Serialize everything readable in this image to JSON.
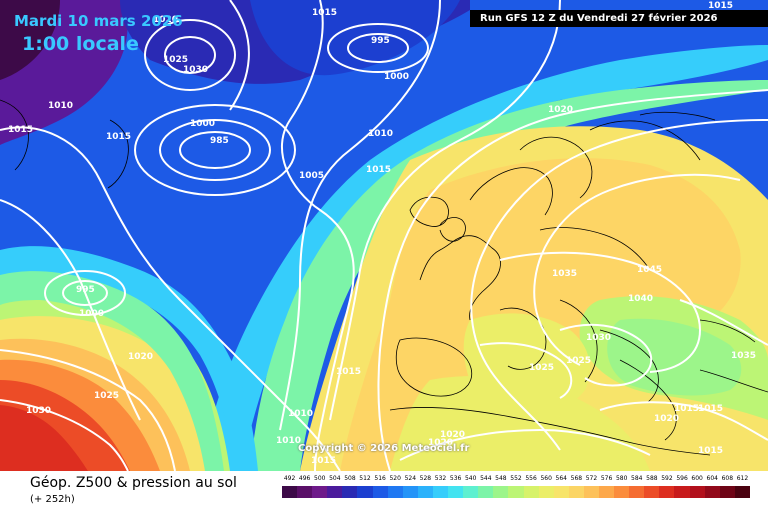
{
  "header": {
    "date": "Mardi 10 mars 2026",
    "time": "1:00 locale",
    "run": "Run GFS 12 Z du Vendredi 27 février 2026"
  },
  "copyright": "Copyright © 2026 Meteociel.fr",
  "footer": {
    "title": "Géop. Z500 & pression au sol",
    "subtitle": "(+ 252h)"
  },
  "colorbar": {
    "labels": [
      "492",
      "496",
      "500",
      "504",
      "508",
      "512",
      "516",
      "520",
      "524",
      "528",
      "532",
      "536",
      "540",
      "544",
      "548",
      "552",
      "556",
      "560",
      "564",
      "568",
      "572",
      "576",
      "580",
      "584",
      "588",
      "592",
      "596",
      "600",
      "604",
      "608",
      "612"
    ],
    "colors": [
      "#3d0a48",
      "#5a0f68",
      "#6e1a8a",
      "#4b1b9c",
      "#2a2ab4",
      "#1c3fd0",
      "#1d5ae6",
      "#1f78f2",
      "#2494f8",
      "#2bb2fb",
      "#36cdfb",
      "#43e3f0",
      "#5ef0d0",
      "#7cf4a8",
      "#9cf58a",
      "#bcf575",
      "#d7f26a",
      "#ebee68",
      "#f7e46a",
      "#fbd565",
      "#fdc15a",
      "#fda84a",
      "#fb8c3c",
      "#f56c31",
      "#ec4c27",
      "#dd2e20",
      "#c81b1c",
      "#b2101c",
      "#92091a",
      "#6e0416",
      "#4a0210"
    ]
  },
  "isobar_labels": [
    "1015",
    "1020",
    "1025",
    "1030",
    "1010",
    "1015",
    "1000",
    "985",
    "995",
    "1000",
    "1015",
    "1010",
    "1005",
    "1015",
    "1020",
    "995",
    "1000",
    "1020",
    "1025",
    "1030",
    "1015",
    "1010",
    "1010",
    "1015",
    "1020",
    "1020",
    "1035",
    "1045",
    "1040",
    "1030",
    "1025",
    "1025",
    "1035",
    "1015",
    "1015",
    "1020",
    "1015",
    "1015"
  ]
}
